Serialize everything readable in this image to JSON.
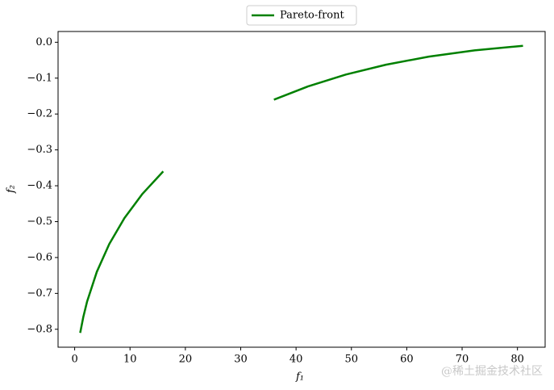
{
  "chart_data": {
    "type": "line",
    "xlabel": "f₁",
    "ylabel": "f₂",
    "x": [
      1,
      1.5625,
      2.25,
      4,
      6.25,
      9,
      12.25,
      16,
      25,
      36,
      42.25,
      49,
      56.25,
      64,
      72.25,
      81
    ],
    "series": [
      {
        "name": "Pareto-front",
        "color": "#008000",
        "values": [
          -0.81,
          -0.765625,
          -0.7225,
          -0.64,
          -0.5625,
          -0.49,
          -0.4225,
          -0.36,
          null,
          -0.16,
          -0.1225,
          -0.09,
          -0.0625,
          -0.04,
          -0.0225,
          -0.01
        ]
      }
    ],
    "xlim": [
      -3,
      85
    ],
    "ylim": [
      -0.85,
      0.03
    ],
    "xticks": [
      0,
      10,
      20,
      30,
      40,
      50,
      60,
      70,
      80
    ],
    "yticks": [
      {
        "value": 0,
        "label": "0.0"
      },
      {
        "value": -0.1,
        "label": "−0.1"
      },
      {
        "value": -0.2,
        "label": "−0.2"
      },
      {
        "value": -0.3,
        "label": "−0.3"
      },
      {
        "value": -0.4,
        "label": "−0.4"
      },
      {
        "value": -0.5,
        "label": "−0.5"
      },
      {
        "value": -0.6,
        "label": "−0.6"
      },
      {
        "value": -0.7,
        "label": "−0.7"
      },
      {
        "value": -0.8,
        "label": "−0.8"
      }
    ],
    "legend": "upper center",
    "grid": false,
    "watermark": "@稀土掘金技术社区"
  }
}
